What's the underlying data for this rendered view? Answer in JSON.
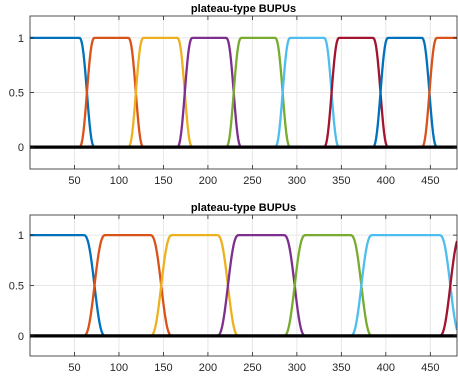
{
  "chart_data": [
    {
      "type": "line",
      "title": "plateau-type BUPUs",
      "xlabel": "",
      "ylabel": "",
      "xlim": [
        0,
        480
      ],
      "ylim": [
        -0.2,
        1.2
      ],
      "xticks": [
        50,
        100,
        150,
        200,
        250,
        300,
        350,
        400,
        450
      ],
      "yticks": [
        0,
        0.5,
        1
      ],
      "ytick_labels": [
        "0",
        "0.5",
        "1"
      ],
      "grid": true,
      "series": [
        {
          "color": "#0072BD",
          "plateau": [
            null,
            55
          ],
          "ramp_width": 18
        },
        {
          "color": "#D95319",
          "plateau": [
            73,
            110
          ],
          "ramp_width": 18
        },
        {
          "color": "#EDB120",
          "plateau": [
            128,
            165
          ],
          "ramp_width": 18
        },
        {
          "color": "#7E2F8E",
          "plateau": [
            183,
            220
          ],
          "ramp_width": 18
        },
        {
          "color": "#77AC30",
          "plateau": [
            238,
            275
          ],
          "ramp_width": 18
        },
        {
          "color": "#4DBEEE",
          "plateau": [
            293,
            330
          ],
          "ramp_width": 18
        },
        {
          "color": "#A2142F",
          "plateau": [
            348,
            385
          ],
          "ramp_width": 18
        },
        {
          "color": "#0072BD",
          "plateau": [
            403,
            440
          ],
          "ramp_width": 18
        },
        {
          "color": "#D95319",
          "plateau": [
            458,
            null
          ],
          "ramp_width": 18
        }
      ],
      "baseline": {
        "y": 0,
        "color": "#000000"
      }
    },
    {
      "type": "line",
      "title": "plateau-type BUPUs",
      "xlabel": "",
      "ylabel": "",
      "xlim": [
        0,
        480
      ],
      "ylim": [
        -0.2,
        1.2
      ],
      "xticks": [
        50,
        100,
        150,
        200,
        250,
        300,
        350,
        400,
        450
      ],
      "yticks": [
        0,
        0.5,
        1
      ],
      "ytick_labels": [
        "0",
        "0.5",
        "1"
      ],
      "grid": true,
      "series": [
        {
          "color": "#0072BD",
          "plateau": [
            null,
            60
          ],
          "ramp_width": 25
        },
        {
          "color": "#D95319",
          "plateau": [
            85,
            135
          ],
          "ramp_width": 25
        },
        {
          "color": "#EDB120",
          "plateau": [
            160,
            210
          ],
          "ramp_width": 25
        },
        {
          "color": "#7E2F8E",
          "plateau": [
            235,
            285
          ],
          "ramp_width": 25
        },
        {
          "color": "#77AC30",
          "plateau": [
            310,
            360
          ],
          "ramp_width": 25
        },
        {
          "color": "#4DBEEE",
          "plateau": [
            385,
            460
          ],
          "ramp_width": 25
        },
        {
          "color": "#A2142F",
          "plateau": [
            485,
            null
          ],
          "ramp_width": 25
        }
      ],
      "baseline": {
        "y": 0,
        "color": "#000000"
      }
    }
  ]
}
